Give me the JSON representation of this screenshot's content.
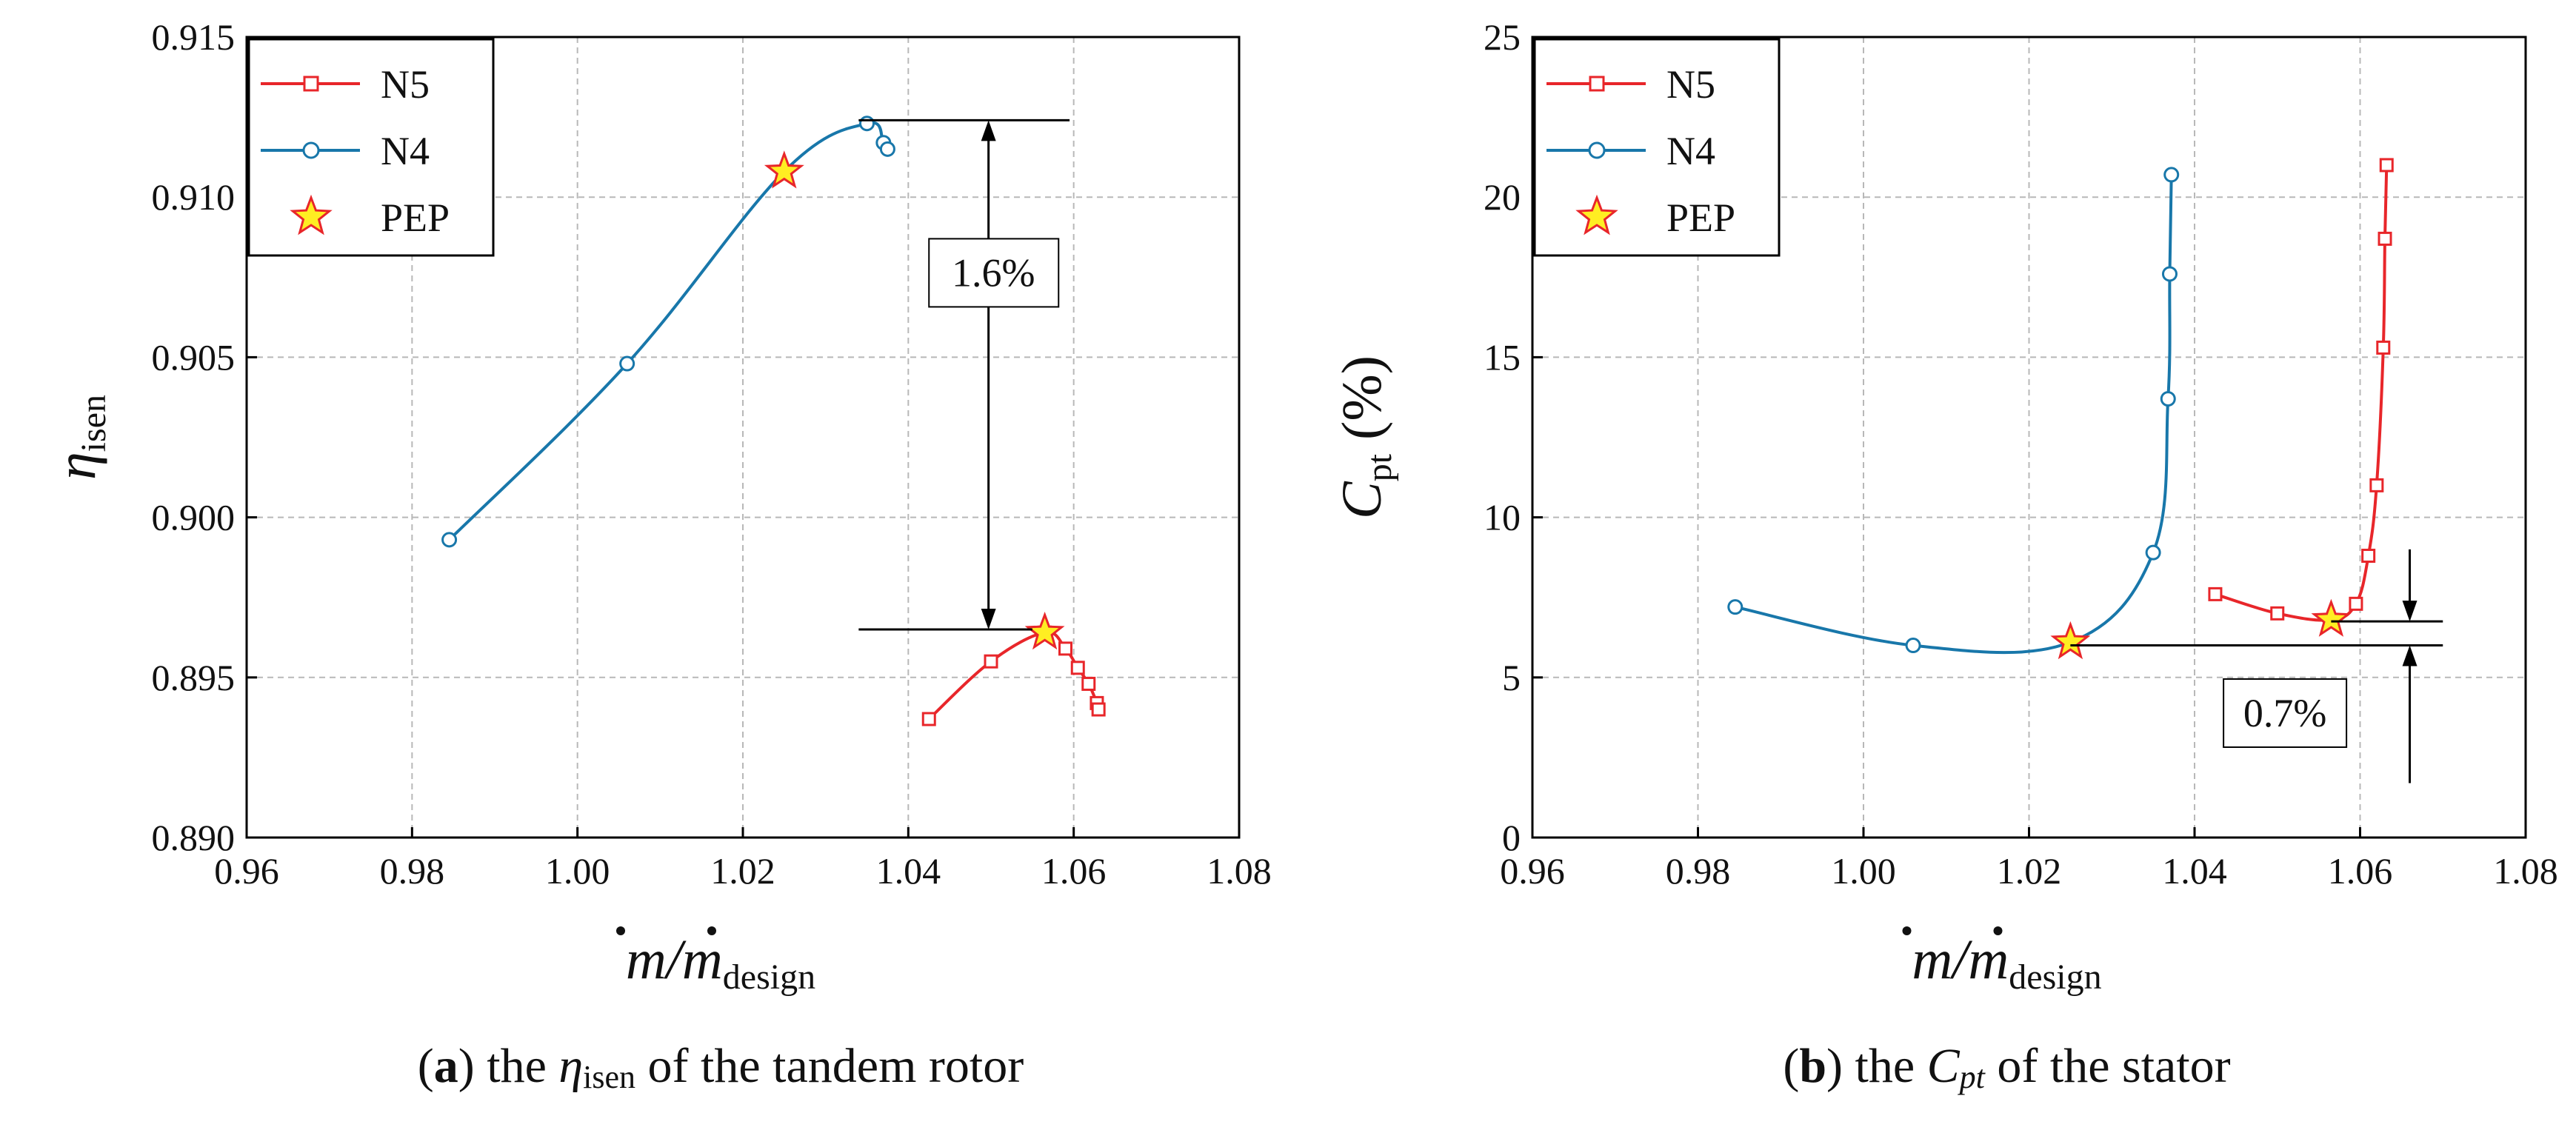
{
  "colors": {
    "N5": "#e8262a",
    "N4": "#1877aa",
    "star_fill": "#ffee22",
    "star_stroke": "#e8262a"
  },
  "chart_data": [
    {
      "type": "line",
      "panel": "a",
      "ylabel_symbol": "η",
      "ylabel_sub": "isen",
      "xlabel_main": "m/m",
      "xlabel_sub": "design",
      "xlim": [
        0.96,
        1.08
      ],
      "ylim": [
        0.89,
        0.915
      ],
      "xticks": [
        0.96,
        0.98,
        1.0,
        1.02,
        1.04,
        1.06,
        1.08
      ],
      "xtick_labels": [
        "0.96",
        "0.98",
        "1.00",
        "1.02",
        "1.04",
        "1.06",
        "1.08"
      ],
      "yticks": [
        0.89,
        0.895,
        0.9,
        0.905,
        0.91,
        0.915
      ],
      "ytick_labels": [
        "0.890",
        "0.895",
        "0.900",
        "0.905",
        "0.910",
        "0.915"
      ],
      "grid": true,
      "legend": {
        "position": "top-left",
        "entries": [
          "N5",
          "N4",
          "PEP"
        ]
      },
      "series": [
        {
          "name": "N5",
          "marker": "square",
          "x": [
            1.0425,
            1.05,
            1.0565,
            1.059,
            1.0605,
            1.0618,
            1.0628,
            1.063
          ],
          "y": [
            0.8937,
            0.8955,
            0.8964,
            0.8959,
            0.8953,
            0.8948,
            0.8942,
            0.894
          ]
        },
        {
          "name": "N4",
          "marker": "circle",
          "x": [
            0.9845,
            1.006,
            1.025,
            1.035,
            1.037,
            1.0375
          ],
          "y": [
            0.8993,
            0.9048,
            0.9108,
            0.9123,
            0.9117,
            0.9115
          ]
        }
      ],
      "pep_points": {
        "x": [
          1.025,
          1.0565
        ],
        "y": [
          0.9108,
          0.8964
        ]
      },
      "annotation": {
        "text": "1.6%",
        "x_arrow": 1.0497,
        "y_top": 0.9124,
        "y_bottom": 0.8965,
        "x_from": 1.034,
        "x_to": 1.0495
      },
      "caption": {
        "letter": "a",
        "before": "the ",
        "symbol": "η",
        "sub": "isen",
        "after": " of the tandem rotor"
      }
    },
    {
      "type": "line",
      "panel": "b",
      "ylabel_symbol": "C",
      "ylabel_sub": "pt",
      "ylabel_unit": "(%)",
      "xlabel_main": "m/m",
      "xlabel_sub": "design",
      "xlim": [
        0.96,
        1.08
      ],
      "ylim": [
        0,
        25
      ],
      "xticks": [
        0.96,
        0.98,
        1.0,
        1.02,
        1.04,
        1.06,
        1.08
      ],
      "xtick_labels": [
        "0.96",
        "0.98",
        "1.00",
        "1.02",
        "1.04",
        "1.06",
        "1.08"
      ],
      "yticks": [
        0,
        5,
        10,
        15,
        20,
        25
      ],
      "ytick_labels": [
        "0",
        "5",
        "10",
        "15",
        "20",
        "25"
      ],
      "grid": true,
      "legend": {
        "position": "top-left",
        "entries": [
          "N5",
          "N4",
          "PEP"
        ]
      },
      "series": [
        {
          "name": "N5",
          "marker": "square",
          "x": [
            1.0425,
            1.05,
            1.0565,
            1.0595,
            1.061,
            1.062,
            1.0628,
            1.063,
            1.0632
          ],
          "y": [
            7.6,
            7.0,
            6.8,
            7.3,
            8.8,
            11.0,
            15.3,
            18.7,
            21.0
          ]
        },
        {
          "name": "N4",
          "marker": "circle",
          "x": [
            0.9845,
            1.006,
            1.025,
            1.035,
            1.0368,
            1.037,
            1.0372
          ],
          "y": [
            7.2,
            6.0,
            6.1,
            8.9,
            13.7,
            17.6,
            20.7
          ]
        }
      ],
      "pep_points": {
        "x": [
          1.025,
          1.0565
        ],
        "y": [
          6.1,
          6.8
        ]
      },
      "annotation": {
        "text": "0.7%",
        "x_arrow": 1.066,
        "y_top": 6.75,
        "y_bottom": 6.0,
        "x_from": 1.0565,
        "x_to": 1.07
      },
      "caption": {
        "letter": "b",
        "before": "the ",
        "symbol": "C",
        "sub": "pt",
        "after": " of the stator"
      }
    }
  ]
}
